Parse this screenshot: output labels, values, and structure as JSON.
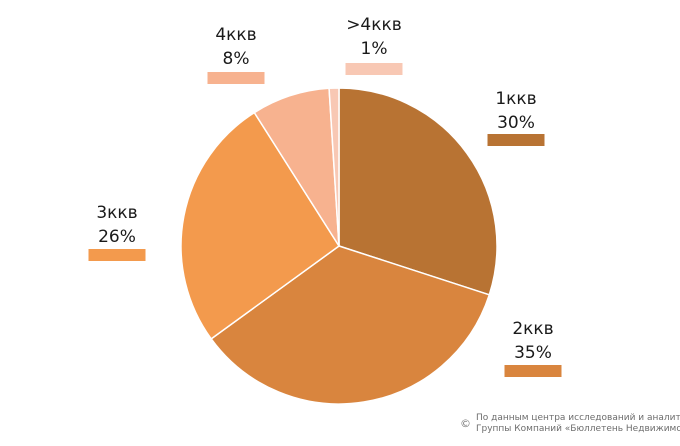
{
  "chart_data": {
    "type": "pie",
    "categories": [
      "1ккв",
      "2ккв",
      "3ккв",
      "4ккв",
      ">4ккв"
    ],
    "values": [
      30,
      35,
      26,
      8,
      1
    ],
    "value_labels": [
      "30%",
      "35%",
      "26%",
      "8%",
      "1%"
    ],
    "colors": [
      "#b87333",
      "#d9853e",
      "#f39a4d",
      "#f7b28f",
      "#f8c8b4"
    ],
    "start_angle_deg": 0,
    "direction": "clockwise"
  },
  "source": {
    "copyright": "©",
    "line1": "По данным центра исследований и аналитики",
    "line2": "Группы Компаний «Бюллетень Недвижимости»"
  }
}
